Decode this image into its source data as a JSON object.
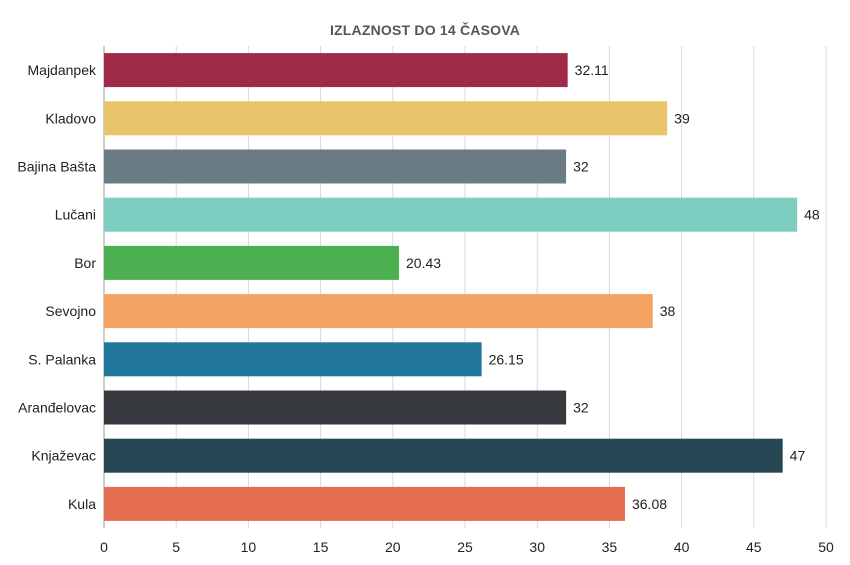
{
  "chart_data": {
    "type": "bar",
    "orientation": "horizontal",
    "title": "IZLAZNOST DO 14 ČASOVA",
    "xlabel": "",
    "ylabel": "",
    "xlim": [
      0,
      50
    ],
    "xticks": [
      0,
      5,
      10,
      15,
      20,
      25,
      30,
      35,
      40,
      45,
      50
    ],
    "grid": true,
    "categories": [
      "Majdanpek",
      "Kladovo",
      "Bajina Bašta",
      "Lučani",
      "Bor",
      "Sevojno",
      "S. Palanka",
      "Aranđelovac",
      "Knjaževac",
      "Kula"
    ],
    "values": [
      32.11,
      39,
      32,
      48,
      20.43,
      38,
      26.15,
      32,
      47,
      36.08
    ],
    "value_labels": [
      "32.11",
      "39",
      "32",
      "48",
      "20.43",
      "38",
      "26.15",
      "32",
      "47",
      "36.08"
    ],
    "colors": [
      "#9e2a47",
      "#e9c46a",
      "#6b7b83",
      "#7ecdc1",
      "#4caf50",
      "#f4a261",
      "#21779b",
      "#373b40",
      "#264653",
      "#e76f51"
    ]
  }
}
